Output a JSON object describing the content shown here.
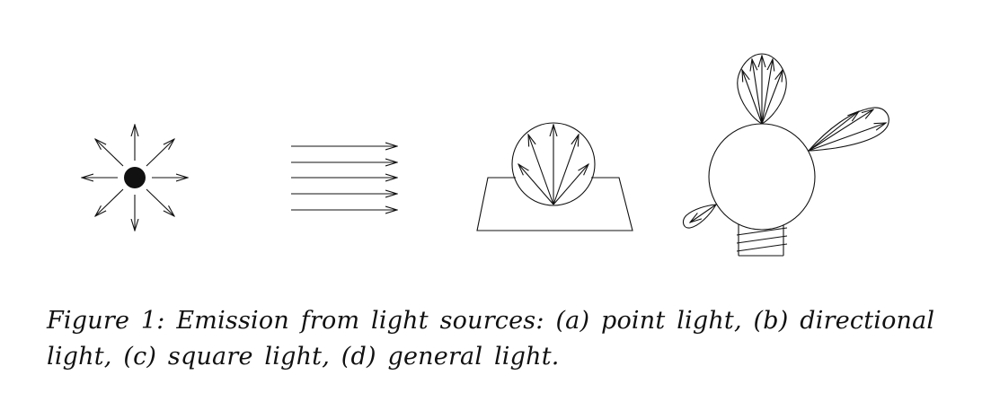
{
  "figure": {
    "panels": [
      {
        "id": "a",
        "name": "point light"
      },
      {
        "id": "b",
        "name": "directional light"
      },
      {
        "id": "c",
        "name": "square light"
      },
      {
        "id": "d",
        "name": "general light"
      }
    ]
  },
  "caption": {
    "line1": "Figure 1: Emission from light sources: (a) point light, (b) directional",
    "line2": "light, (c) square light, (d) general light."
  },
  "colors": {
    "ink": "#111111",
    "background": "#ffffff"
  }
}
